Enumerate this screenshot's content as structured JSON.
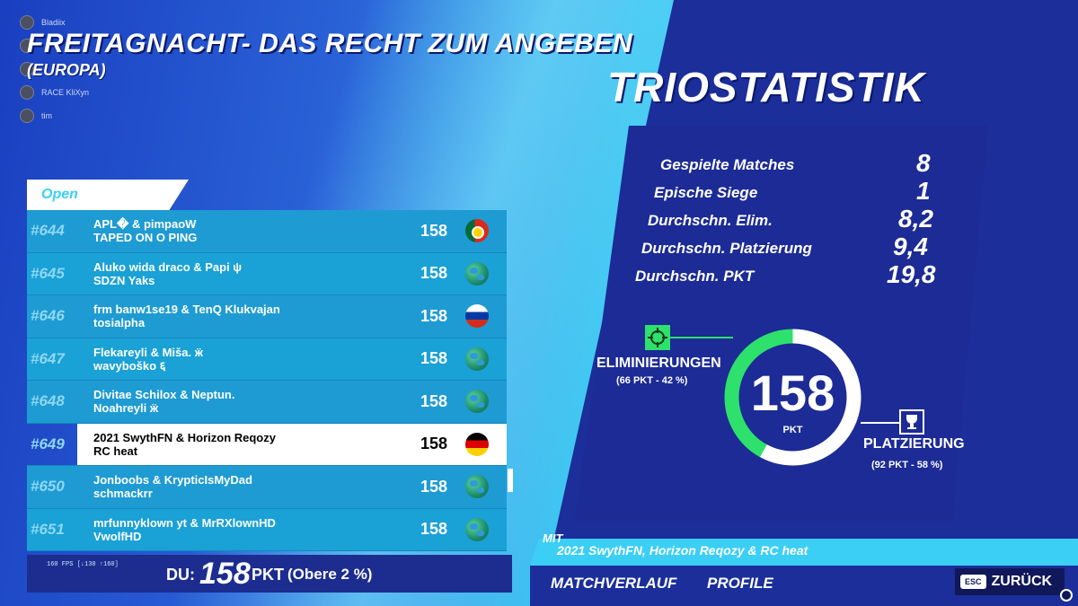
{
  "party": [
    {
      "name": "Bladiix"
    },
    {
      "name": ""
    },
    {
      "name": ""
    },
    {
      "name": "RACE KliXyn"
    },
    {
      "name": "tim"
    }
  ],
  "header": {
    "title": "FREITAGNACHT- DAS RECHT ZUM ANGEBEN",
    "subtitle": "(EUROPA)"
  },
  "leaderboard": {
    "tab": "Open",
    "rows": [
      {
        "rank": "#644",
        "line1": "APL� & pimpaoW",
        "line2": "TAPED ON O PING",
        "points": "158",
        "flag": "portugal-flag-icon"
      },
      {
        "rank": "#645",
        "line1": "Aluko wida draco & Papi ψ",
        "line2": "SDZN Yaks",
        "points": "158",
        "flag": "globe-icon"
      },
      {
        "rank": "#646",
        "line1": "frm banw1se19 & TenQ Klukvajan",
        "line2": "tosialpha",
        "points": "158",
        "flag": "russia-flag-icon"
      },
      {
        "rank": "#647",
        "line1": "Flekareyli & Miša. ӝ",
        "line2": "wavybоškо ६",
        "points": "158",
        "flag": "globe-icon"
      },
      {
        "rank": "#648",
        "line1": "Divitae Schilox & Neptun.",
        "line2": "Noahreyli ӝ",
        "points": "158",
        "flag": "globe-icon"
      },
      {
        "rank": "#649",
        "line1": "2021 SwythFN & Horizon Reqozy",
        "line2": "RC heat",
        "points": "158",
        "flag": "germany-flag-icon"
      },
      {
        "rank": "#650",
        "line1": "Jonboobs & KrypticIsMyDad",
        "line2": "schmackrr",
        "points": "158",
        "flag": "globe-icon"
      },
      {
        "rank": "#651",
        "line1": "mrfunnyklown yt & MrRXlownHD",
        "line2": "VwolfHD",
        "points": "158",
        "flag": "globe-icon"
      }
    ]
  },
  "footer_left": {
    "fps": "160 FPS [↓130 ↑160]",
    "du_label": "DU:",
    "du_value": "158",
    "du_unit": "PKT",
    "du_pct": "(Obere 2 %)"
  },
  "stats": {
    "title": "TRIOSTATISTIK",
    "items": [
      {
        "label": "Gespielte Matches",
        "value": "8"
      },
      {
        "label": "Epische Siege",
        "value": "1"
      },
      {
        "label": "Durchschn. Elim.",
        "value": "8,2"
      },
      {
        "label": "Durchschn. Platzierung",
        "value": "9,4"
      },
      {
        "label": "Durchschn. PKT",
        "value": "19,8"
      }
    ],
    "ring": {
      "total": "158",
      "unit": "PKT",
      "elim_fraction": 0.42,
      "elim_color": "#2ee06c",
      "plat_color": "#ffffff"
    },
    "elim_label": "ELIMINIERUNGEN",
    "elim_sub": "(66 PKT - 42 %)",
    "plat_label": "PLATZIERUNG",
    "plat_sub": "(92 PKT - 58 %)"
  },
  "bottom": {
    "mit_label": "MIT",
    "mit_names": "2021 SwythFN, Horizon Reqozy & RC heat",
    "nav_match": "MATCHVERLAUF",
    "nav_profile": "PROFILE",
    "esc_key": "ESC",
    "back_label": "ZURÜCK"
  }
}
